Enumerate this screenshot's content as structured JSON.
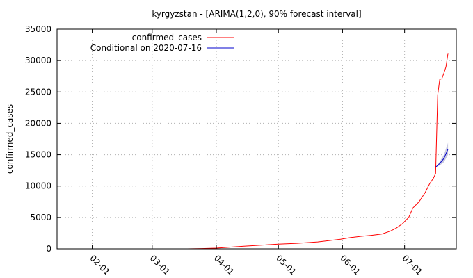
{
  "chart_data": {
    "type": "line",
    "title": "kyrgyzstan -  [ARIMA(1,2,0), 90% forecast interval]",
    "xlabel": "",
    "ylabel": "confirmed_cases",
    "x_range": [
      "2020-01-15",
      "2020-07-26"
    ],
    "ylim": [
      0,
      35000
    ],
    "y_ticks": [
      0,
      5000,
      10000,
      15000,
      20000,
      25000,
      30000,
      35000
    ],
    "x_ticks": [
      {
        "date": "2020-02-01",
        "label": "02-01"
      },
      {
        "date": "2020-03-01",
        "label": "03-01"
      },
      {
        "date": "2020-04-01",
        "label": "04-01"
      },
      {
        "date": "2020-05-01",
        "label": "05-01"
      },
      {
        "date": "2020-06-01",
        "label": "06-01"
      },
      {
        "date": "2020-07-01",
        "label": "07-01"
      }
    ],
    "grid": true,
    "legend_position": "top-left",
    "series": [
      {
        "name": "confirmed_cases",
        "color": "#ff0000",
        "points": [
          [
            "2020-03-18",
            3
          ],
          [
            "2020-03-25",
            44
          ],
          [
            "2020-04-01",
            111
          ],
          [
            "2020-04-08",
            280
          ],
          [
            "2020-04-15",
            430
          ],
          [
            "2020-04-22",
            570
          ],
          [
            "2020-05-01",
            746
          ],
          [
            "2020-05-10",
            870
          ],
          [
            "2020-05-20",
            1100
          ],
          [
            "2020-05-31",
            1520
          ],
          [
            "2020-06-05",
            1800
          ],
          [
            "2020-06-10",
            1990
          ],
          [
            "2020-06-15",
            2150
          ],
          [
            "2020-06-20",
            2350
          ],
          [
            "2020-06-24",
            2800
          ],
          [
            "2020-06-27",
            3300
          ],
          [
            "2020-06-30",
            4000
          ],
          [
            "2020-07-03",
            5000
          ],
          [
            "2020-07-05",
            6500
          ],
          [
            "2020-07-08",
            7500
          ],
          [
            "2020-07-11",
            9000
          ],
          [
            "2020-07-13",
            10300
          ],
          [
            "2020-07-15",
            11300
          ],
          [
            "2020-07-16",
            12000
          ],
          [
            "2020-07-17",
            24500
          ],
          [
            "2020-07-18",
            27000
          ],
          [
            "2020-07-19",
            27100
          ],
          [
            "2020-07-20",
            28000
          ],
          [
            "2020-07-21",
            29000
          ],
          [
            "2020-07-22",
            31200
          ]
        ]
      },
      {
        "name": "Conditional on 2020-07-16",
        "color": "#0000cc",
        "band_color": "#c8c8e0",
        "points": [
          [
            "2020-07-16",
            13000
          ],
          [
            "2020-07-18",
            13600
          ],
          [
            "2020-07-20",
            14400
          ],
          [
            "2020-07-22",
            15900
          ]
        ],
        "lower": [
          13000,
          13300,
          13800,
          15000
        ],
        "upper": [
          13000,
          13900,
          15000,
          16900
        ]
      }
    ]
  }
}
